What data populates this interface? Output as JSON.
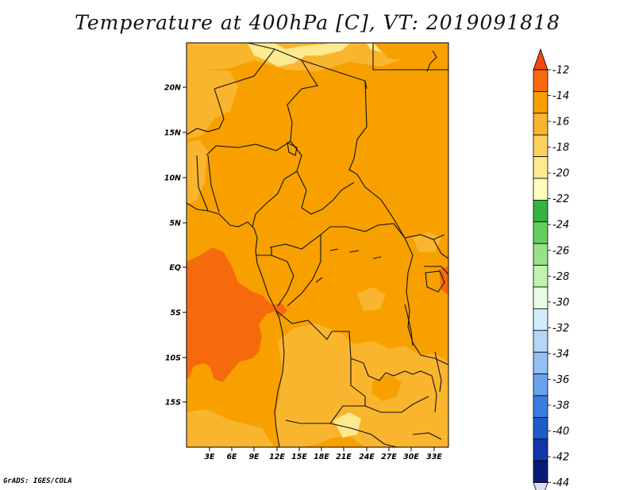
{
  "title": "Temperature at 400hPa [C], VT: 2019091818",
  "credit": "GrADS: IGES/COLA",
  "map": {
    "lat_labels": [
      "20N",
      "15N",
      "10N",
      "5N",
      "EQ",
      "5S",
      "10S",
      "15S"
    ],
    "lon_labels": [
      "3E",
      "6E",
      "9E",
      "12E",
      "15E",
      "18E",
      "21E",
      "24E",
      "27E",
      "30E",
      "33E"
    ],
    "shading_colors": {
      "warmest": "#f56a0c",
      "warm": "#f7a000",
      "mid": "#fab52e",
      "cool": "#fbd15f",
      "coolest": "#fde98f"
    }
  },
  "colorbar": {
    "labels": [
      "-12",
      "-14",
      "-16",
      "-18",
      "-20",
      "-22",
      "-24",
      "-26",
      "-28",
      "-30",
      "-32",
      "-34",
      "-36",
      "-38",
      "-40",
      "-42",
      "-44"
    ],
    "colors": [
      "#f2490c",
      "#f56a0c",
      "#f7a000",
      "#fab52e",
      "#fbd15f",
      "#fde98f",
      "#fefec0",
      "#33b441",
      "#64cf5e",
      "#96e288",
      "#c0f2b1",
      "#e8fde5",
      "#d2ecfc",
      "#b4d6f7",
      "#94c0f3",
      "#6aa2ea",
      "#3c7ede",
      "#1e5cc9",
      "#1237a8",
      "#0a1a78",
      "#dddbf8"
    ]
  }
}
